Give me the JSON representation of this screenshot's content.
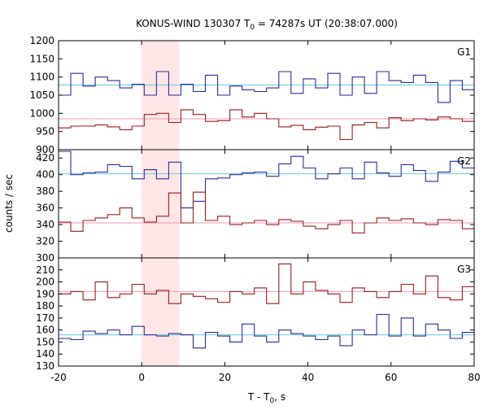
{
  "chart_data": {
    "type": "line",
    "title_prefix": "KONUS-WIND 130307 T",
    "title_sub": "0",
    "title_suffix": " = 74287s UT (20:38:07.000)",
    "xlabel_prefix": "T - T",
    "xlabel_sub": "0",
    "xlabel_suffix": ", s",
    "ylabel": "counts / sec",
    "xlim": [
      -20,
      80
    ],
    "xticks": [
      "-20",
      "0",
      "20",
      "40",
      "60",
      "80"
    ],
    "highlight": {
      "x0": 0,
      "x1": 9,
      "color": "#ffe6e6"
    },
    "colors": {
      "blue": "#2a2a9a",
      "cyan": "#66ccdd",
      "red": "#9a1a1a",
      "pink": "#ee99bb"
    },
    "panels": [
      {
        "label": "G1",
        "ylim": [
          900,
          1200
        ],
        "yticks": [
          "900",
          "950",
          "1000",
          "1050",
          "1100",
          "1150",
          "1200"
        ],
        "series": [
          {
            "color": "blue",
            "start": -20,
            "step": 2.944,
            "values": [
              1050,
              1110,
              1075,
              1100,
              1090,
              1070,
              1080,
              1050,
              1115,
              1050,
              1080,
              1060,
              1105,
              1050,
              1075,
              1065,
              1060,
              1070,
              1115,
              1055,
              1095,
              1070,
              1110,
              1050,
              1100,
              1055,
              1115,
              1090,
              1085,
              1105,
              1085,
              1030,
              1090,
              1065,
              1085,
              1065,
              1095,
              1075,
              1065,
              1100,
              1085,
              1070,
              1085,
              1095,
              1080,
              1060,
              1095,
              1075,
              1070,
              1085,
              1065,
              1075,
              1100,
              1060,
              1085,
              1110,
              1055,
              1085,
              1100,
              1080,
              1075,
              1095,
              1090,
              1070,
              1050
            ]
          },
          {
            "color": "red",
            "start": -20,
            "step": 2.944,
            "values": [
              960,
              965,
              965,
              968,
              963,
              955,
              965,
              997,
              1000,
              975,
              1010,
              997,
              978,
              980,
              1010,
              990,
              1000,
              985,
              963,
              967,
              955,
              962,
              965,
              928,
              968,
              975,
              960,
              988,
              980,
              985,
              982,
              990,
              985,
              978,
              987,
              972,
              980,
              998,
              1015,
              990,
              988,
              970,
              955,
              985,
              960,
              980,
              990,
              978,
              960,
              965,
              987,
              997,
              963,
              990,
              975,
              985,
              985,
              960,
              995,
              975,
              965,
              985,
              980,
              975,
              980
            ]
          }
        ],
        "means": [
          {
            "color": "cyan",
            "value": 1078
          },
          {
            "color": "pink",
            "value": 985
          }
        ]
      },
      {
        "label": "G2",
        "ylim": [
          300,
          430
        ],
        "yticks": [
          "300",
          "320",
          "340",
          "360",
          "380",
          "400",
          "420"
        ],
        "series": [
          {
            "color": "blue",
            "start": -20,
            "step": 2.944,
            "values": [
              428,
              400,
              402,
              403,
              412,
              410,
              395,
              406,
              395,
              415,
              360,
              368,
              395,
              396,
              400,
              402,
              403,
              398,
              413,
              422,
              408,
              395,
              401,
              408,
              395,
              415,
              402,
              398,
              412,
              405,
              392,
              403,
              416,
              408,
              390,
              397,
              408,
              403,
              388,
              412,
              402,
              398,
              395,
              405,
              392,
              397,
              402,
              380,
              405,
              410,
              400,
              420,
              400,
              395,
              401,
              403,
              405,
              398,
              393,
              403,
              402,
              410,
              395,
              400,
              398
            ]
          },
          {
            "color": "red",
            "start": -20,
            "step": 2.944,
            "values": [
              343,
              332,
              345,
              348,
              352,
              360,
              348,
              343,
              350,
              378,
              342,
              379,
              345,
              350,
              340,
              342,
              345,
              340,
              346,
              344,
              338,
              335,
              340,
              345,
              330,
              342,
              348,
              345,
              347,
              342,
              340,
              346,
              345,
              335,
              343,
              340,
              345,
              346,
              345,
              338,
              342,
              330,
              345,
              362,
              333,
              350,
              348,
              342,
              328,
              335,
              350,
              345,
              342,
              340,
              345,
              338,
              335,
              342,
              345,
              350,
              338,
              342,
              345,
              335,
              332
            ]
          }
        ],
        "means": [
          {
            "color": "cyan",
            "value": 401
          },
          {
            "color": "pink",
            "value": 342
          }
        ]
      },
      {
        "label": "G3",
        "ylim": [
          130,
          220
        ],
        "yticks": [
          "130",
          "140",
          "150",
          "160",
          "170",
          "180",
          "190",
          "200",
          "210"
        ],
        "series": [
          {
            "color": "blue",
            "start": -20,
            "step": 2.944,
            "values": [
              153,
              152,
              159,
              157,
              160,
              156,
              163,
              156,
              155,
              157,
              156,
              145,
              158,
              155,
              150,
              165,
              155,
              150,
              160,
              157,
              155,
              152,
              155,
              147,
              160,
              156,
              173,
              155,
              170,
              155,
              165,
              160,
              153,
              158,
              155,
              152,
              158,
              160,
              165,
              158,
              155,
              150,
              162,
              155,
              157,
              150,
              160,
              170,
              155,
              160,
              157,
              155,
              150,
              158,
              160,
              155,
              165,
              152,
              160,
              153,
              158,
              155,
              157,
              150,
              158
            ]
          },
          {
            "color": "red",
            "start": -20,
            "step": 2.944,
            "values": [
              190,
              192,
              185,
              200,
              187,
              190,
              198,
              190,
              193,
              182,
              190,
              188,
              186,
              183,
              192,
              190,
              195,
              182,
              215,
              190,
              200,
              193,
              190,
              183,
              195,
              192,
              187,
              192,
              198,
              190,
              205,
              187,
              185,
              196,
              188,
              192,
              188,
              190,
              210,
              190,
              195,
              188,
              193,
              190,
              198,
              183,
              196,
              190,
              188,
              192,
              194,
              190,
              188,
              192,
              191,
              192,
              195,
              187,
              190,
              193,
              190,
              192,
              188,
              185,
              196
            ]
          }
        ],
        "means": [
          {
            "color": "pink",
            "value": 192
          },
          {
            "color": "cyan",
            "value": 156
          }
        ]
      }
    ]
  }
}
